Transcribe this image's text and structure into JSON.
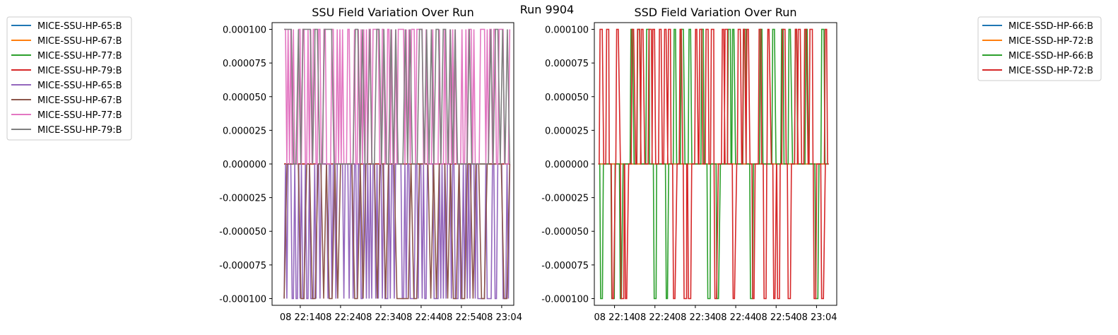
{
  "suptitle": "Run 9904",
  "chart_data": [
    {
      "type": "line",
      "title": "SSU Field Variation Over Run",
      "xlabel": "",
      "ylabel": "",
      "ylim": [
        -0.000105,
        0.000105
      ],
      "xlim": [
        "22:07",
        "23:07"
      ],
      "x_tick_labels": [
        "08 22:14",
        "08 22:24",
        "08 22:34",
        "08 22:44",
        "08 22:54",
        "08 23:04"
      ],
      "y_tick_labels": [
        "0.000100",
        "0.000075",
        "0.000050",
        "0.000025",
        "0.000000",
        "-0.000025",
        "-0.000050",
        "-0.000075",
        "-0.000100"
      ],
      "y_tick_values": [
        0.0001,
        7.5e-05,
        5e-05,
        2.5e-05,
        0,
        -2.5e-05,
        -5e-05,
        -7.5e-05,
        -0.0001
      ],
      "x_range": [
        "22:10",
        "23:06"
      ],
      "legend_position": "outside upper-left",
      "series": [
        {
          "name": "MICE-SSU-HP-65:B",
          "color": "#1f77b4",
          "values": "constant 0 over run"
        },
        {
          "name": "MICE-SSU-HP-67:B",
          "color": "#ff7f0e",
          "values": "constant 0 over run"
        },
        {
          "name": "MICE-SSU-HP-77:B",
          "color": "#2ca02c",
          "values": "constant 0 over run"
        },
        {
          "name": "MICE-SSU-HP-79:B",
          "color": "#d62728",
          "values": "constant 0 over run"
        },
        {
          "name": "MICE-SSU-HP-65:B",
          "color": "#9467bd",
          "values": "rapid toggling between 0 and -0.0001"
        },
        {
          "name": "MICE-SSU-HP-67:B",
          "color": "#8c564b",
          "values": "frequent toggling between 0 and -0.0001"
        },
        {
          "name": "MICE-SSU-HP-77:B",
          "color": "#e377c2",
          "values": "rapid toggling between 0 and 0.0001"
        },
        {
          "name": "MICE-SSU-HP-79:B",
          "color": "#7f7f7f",
          "values": "frequent toggling between 0 and 0.0001"
        }
      ]
    },
    {
      "type": "line",
      "title": "SSD Field Variation Over Run",
      "xlabel": "",
      "ylabel": "",
      "ylim": [
        -0.000105,
        0.000105
      ],
      "xlim": [
        "22:09",
        "23:09"
      ],
      "x_tick_labels": [
        "08 22:14",
        "08 22:24",
        "08 22:34",
        "08 22:44",
        "08 22:54",
        "08 23:04"
      ],
      "y_tick_labels": [
        "0.000100",
        "0.000075",
        "0.000050",
        "0.000025",
        "0.000000",
        "-0.000025",
        "-0.000050",
        "-0.000075",
        "-0.000100"
      ],
      "y_tick_values": [
        0.0001,
        7.5e-05,
        5e-05,
        2.5e-05,
        0,
        -2.5e-05,
        -5e-05,
        -7.5e-05,
        -0.0001
      ],
      "x_range": [
        "22:10",
        "23:07"
      ],
      "legend_position": "outside upper-right",
      "series": [
        {
          "name": "MICE-SSD-HP-66:B",
          "color": "#1f77b4",
          "values": "constant 0 over run"
        },
        {
          "name": "MICE-SSD-HP-72:B",
          "color": "#ff7f0e",
          "values": "constant 0 over run"
        },
        {
          "name": "MICE-SSD-HP-66:B",
          "color": "#2ca02c",
          "values": "sparse spikes to +/-0.0001"
        },
        {
          "name": "MICE-SSD-HP-72:B",
          "color": "#d62728",
          "values": "sparse spikes to +/-0.0001"
        }
      ]
    }
  ]
}
